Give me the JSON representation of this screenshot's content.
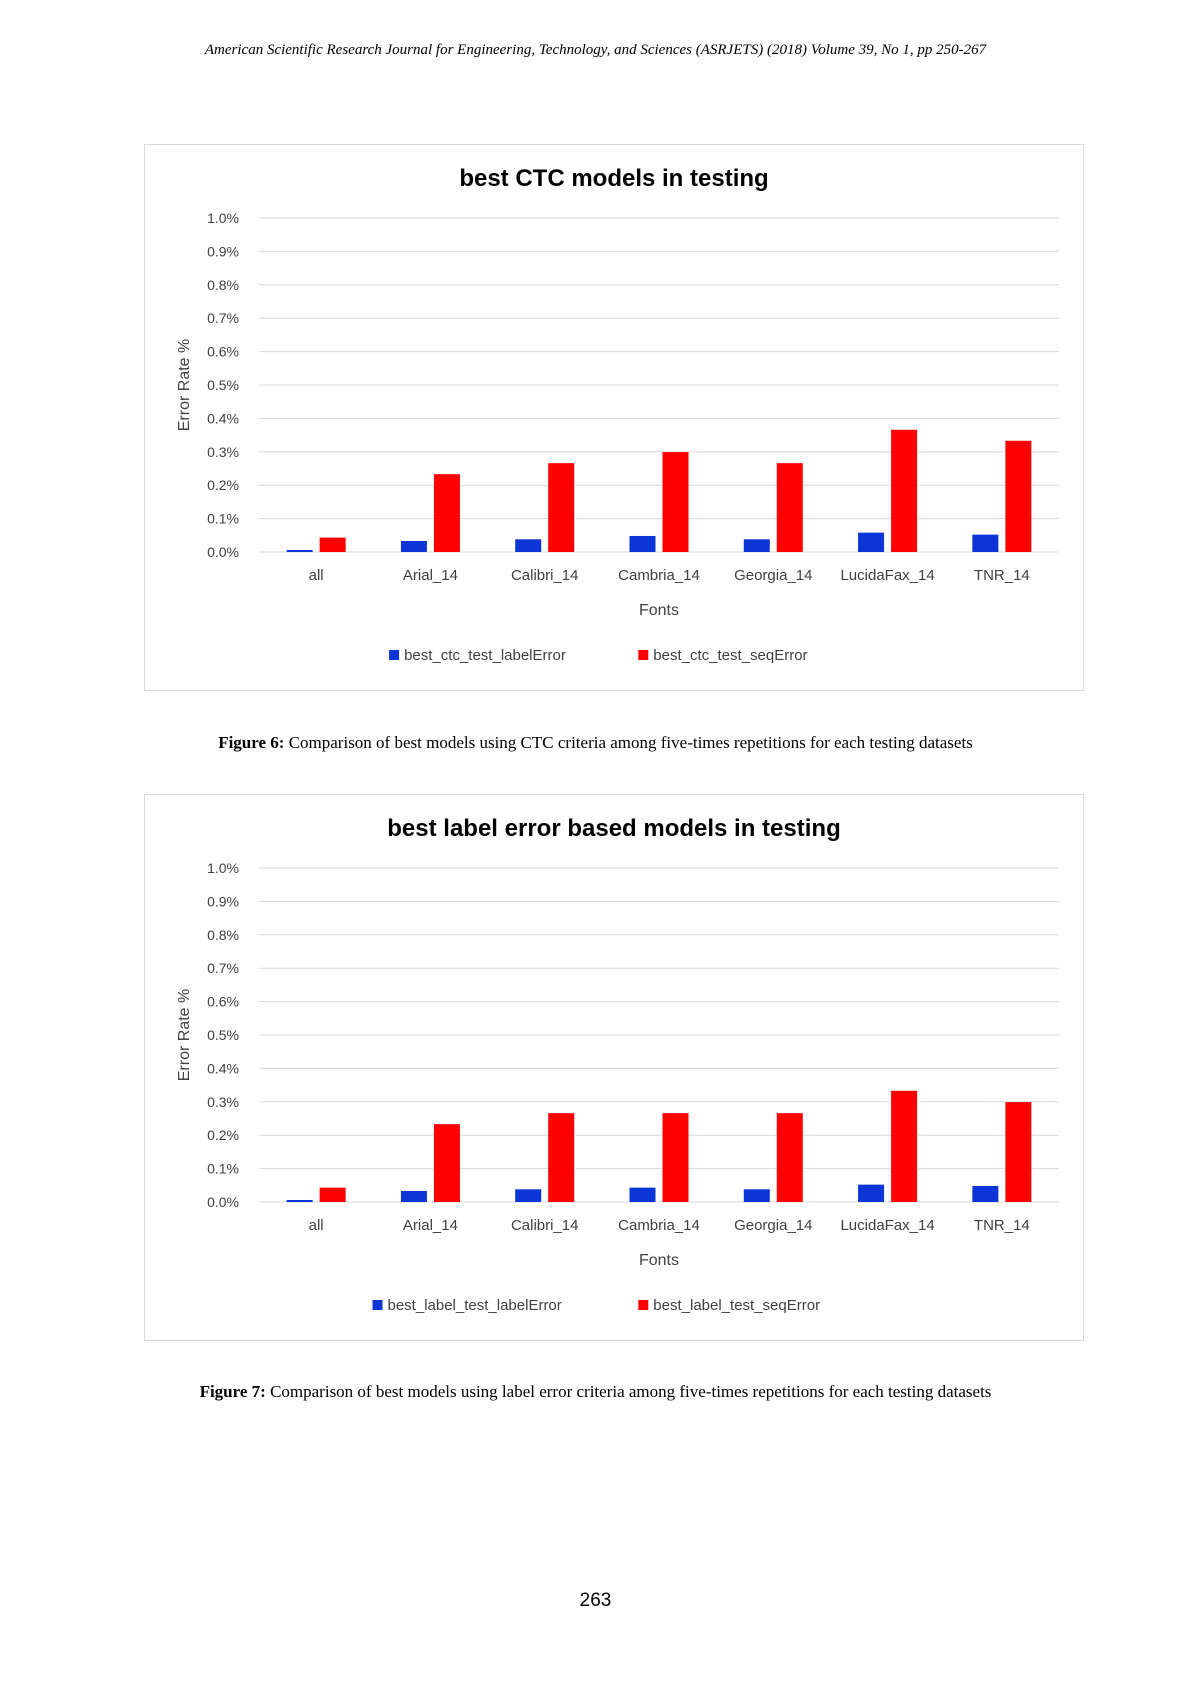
{
  "header": {
    "running_title": "American Scientific Research Journal for Engineering, Technology, and Sciences (ASRJETS) (2018) Volume 39, No  1, pp 250-267"
  },
  "chart_data": [
    {
      "type": "bar",
      "title": "best CTC models in testing",
      "xlabel": "Fonts",
      "ylabel": "Error Rate %",
      "categories": [
        "all",
        "Arial_14",
        "Calibri_14",
        "Cambria_14",
        "Georgia_14",
        "LucidaFax_14",
        "TNR_14"
      ],
      "series": [
        {
          "name": "best_ctc_test_labelError",
          "color": "#0b35d6",
          "values": [
            0.0006,
            0.0033,
            0.0038,
            0.0048,
            0.0038,
            0.0058,
            0.0052
          ]
        },
        {
          "name": "best_ctc_test_seqError",
          "color": "#ff0000",
          "values": [
            0.0043,
            0.0233,
            0.0266,
            0.0299,
            0.0266,
            0.0366,
            0.0333
          ]
        }
      ],
      "ylim": [
        0,
        0.1
      ],
      "yticks": [
        "0.0%",
        "0.1%",
        "0.2%",
        "0.3%",
        "0.4%",
        "0.5%",
        "0.6%",
        "0.7%",
        "0.8%",
        "0.9%",
        "1.0%"
      ],
      "grid": true,
      "legend": "bottom-center"
    },
    {
      "type": "bar",
      "title": "best label error based models in testing",
      "xlabel": "Fonts",
      "ylabel": "Error Rate %",
      "categories": [
        "all",
        "Arial_14",
        "Calibri_14",
        "Cambria_14",
        "Georgia_14",
        "LucidaFax_14",
        "TNR_14"
      ],
      "series": [
        {
          "name": "best_label_test_labelError",
          "color": "#0b35d6",
          "values": [
            0.0006,
            0.0033,
            0.0038,
            0.0043,
            0.0038,
            0.0052,
            0.0048
          ]
        },
        {
          "name": "best_label_test_seqError",
          "color": "#ff0000",
          "values": [
            0.0043,
            0.0233,
            0.0266,
            0.0266,
            0.0266,
            0.0333,
            0.0299
          ]
        }
      ],
      "ylim": [
        0,
        0.1
      ],
      "yticks": [
        "0.0%",
        "0.1%",
        "0.2%",
        "0.3%",
        "0.4%",
        "0.5%",
        "0.6%",
        "0.7%",
        "0.8%",
        "0.9%",
        "1.0%"
      ],
      "grid": true,
      "legend": "bottom-center"
    }
  ],
  "captions": {
    "fig6_label": "Figure 6:",
    "fig6_text": " Comparison of best models using CTC criteria among five-times repetitions for each testing datasets",
    "fig7_label": "Figure 7:",
    "fig7_text": " Comparison of best models using label error criteria among five-times repetitions for each testing datasets"
  },
  "footer": {
    "page_number": "263"
  }
}
